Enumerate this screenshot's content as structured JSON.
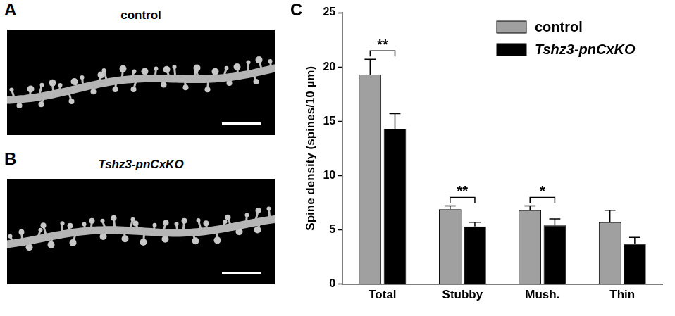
{
  "panels": [
    {
      "letter": "A",
      "title": "control"
    },
    {
      "letter": "B",
      "title": "Tshz3-pnCxKO",
      "title_style": "italic"
    },
    {
      "letter": "C"
    }
  ],
  "chart_data": {
    "type": "bar",
    "y_label": "Spine density (spines/10 µm)",
    "categories": [
      "Total",
      "Stubby",
      "Mush.",
      "Thin"
    ],
    "series": [
      {
        "name": "control",
        "color": "#a0a0a0",
        "values": [
          19.3,
          6.9,
          6.8,
          5.7
        ],
        "errors": [
          1.4,
          0.3,
          0.4,
          1.1
        ]
      },
      {
        "name": "Tshz3-pnCxKO",
        "color": "#000000",
        "values": [
          14.3,
          5.3,
          5.4,
          3.7
        ],
        "errors": [
          1.4,
          0.4,
          0.6,
          0.6
        ]
      }
    ],
    "annotations": [
      {
        "category": "Total",
        "text": "**"
      },
      {
        "category": "Stubby",
        "text": "**"
      },
      {
        "category": "Mush.",
        "text": "*"
      }
    ],
    "ylim": [
      0,
      25
    ],
    "yticks": [
      0,
      5,
      10,
      15,
      20,
      25
    ],
    "grid": false,
    "legend": "top-right"
  }
}
